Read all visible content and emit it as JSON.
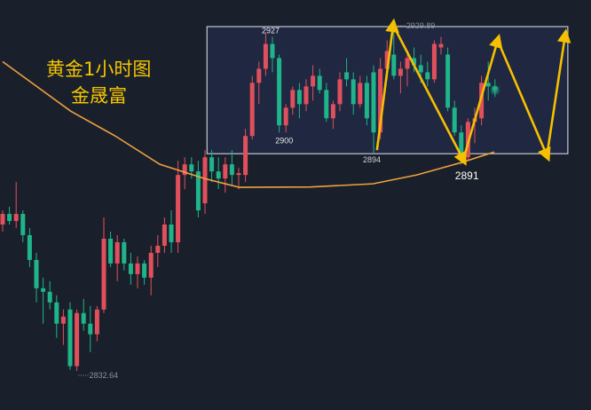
{
  "overlay_text": {
    "line1": "黄金1小时图",
    "line2": "金晟富"
  },
  "colors": {
    "background": "#1a202b",
    "up": "#e0505c",
    "down": "#1fb48a",
    "ma": "#f0a040",
    "arrows": "#f5c000",
    "range_box_fill": "#1f2741",
    "range_box_border": "#c4c8d0",
    "title": "#f5c400"
  },
  "chart_data": {
    "type": "candlestick",
    "title": "黄金1小时图",
    "up_color": "red",
    "down_color": "green",
    "ohlc": [
      [
        2874,
        2878,
        2872,
        2877
      ],
      [
        2877,
        2879,
        2874,
        2875
      ],
      [
        2875,
        2886,
        2873,
        2877
      ],
      [
        2877,
        2878,
        2869,
        2871
      ],
      [
        2871,
        2873,
        2862,
        2864
      ],
      [
        2864,
        2866,
        2852,
        2856
      ],
      [
        2856,
        2859,
        2846,
        2855
      ],
      [
        2855,
        2858,
        2850,
        2852
      ],
      [
        2852,
        2854,
        2842,
        2846
      ],
      [
        2846,
        2850,
        2840,
        2848
      ],
      [
        2850,
        2852,
        2833,
        2834
      ],
      [
        2834,
        2850,
        2832.64,
        2849
      ],
      [
        2849,
        2853,
        2844,
        2846
      ],
      [
        2846,
        2851,
        2838,
        2843
      ],
      [
        2843,
        2851,
        2841,
        2850
      ],
      [
        2850,
        2876,
        2849,
        2870
      ],
      [
        2870,
        2872,
        2862,
        2863
      ],
      [
        2863,
        2871,
        2858,
        2869
      ],
      [
        2869,
        2870,
        2861,
        2863
      ],
      [
        2863,
        2866,
        2857,
        2860
      ],
      [
        2860,
        2865,
        2856,
        2863
      ],
      [
        2863,
        2864,
        2857,
        2859
      ],
      [
        2859,
        2868,
        2854,
        2866
      ],
      [
        2866,
        2871,
        2862,
        2868
      ],
      [
        2868,
        2876,
        2866,
        2874
      ],
      [
        2874,
        2878,
        2866,
        2869
      ],
      [
        2869,
        2892,
        2866,
        2888
      ],
      [
        2888,
        2893,
        2884,
        2891
      ],
      [
        2891,
        2893,
        2887,
        2889
      ],
      [
        2889,
        2892,
        2876,
        2878
      ],
      [
        2880,
        2895,
        2877,
        2893
      ],
      [
        2893,
        2895,
        2886,
        2889
      ],
      [
        2889,
        2893,
        2884,
        2887
      ],
      [
        2887,
        2893,
        2883,
        2891
      ],
      [
        2891,
        2895,
        2885,
        2888
      ],
      [
        2888,
        2890,
        2884,
        2888.5
      ],
      [
        2888,
        2901,
        2886,
        2899
      ],
      [
        2899,
        2916,
        2898,
        2914
      ],
      [
        2914,
        2920,
        2908,
        2918
      ],
      [
        2918,
        2928,
        2916,
        2925
      ],
      [
        2925,
        2927,
        2917,
        2921
      ],
      [
        2921,
        2922,
        2900,
        2902
      ],
      [
        2902,
        2908,
        2900,
        2907
      ],
      [
        2907,
        2913,
        2905,
        2912
      ],
      [
        2912,
        2914,
        2904,
        2908
      ],
      [
        2908,
        2915,
        2906,
        2913
      ],
      [
        2913,
        2919,
        2909,
        2916
      ],
      [
        2916,
        2918,
        2911,
        2912
      ],
      [
        2912,
        2914,
        2903,
        2904
      ],
      [
        2904,
        2909,
        2901,
        2908
      ],
      [
        2908,
        2917,
        2906,
        2915
      ],
      [
        2917,
        2921,
        2913,
        2915
      ],
      [
        2915,
        2917,
        2905,
        2908
      ],
      [
        2908,
        2916,
        2907,
        2914
      ],
      [
        2914,
        2916,
        2902,
        2904
      ],
      [
        2917,
        2919,
        2894,
        2900
      ],
      [
        2900,
        2921,
        2898,
        2918
      ],
      [
        2918,
        2926,
        2915,
        2923
      ],
      [
        2922,
        2929.89,
        2915,
        2916
      ],
      [
        2916,
        2920,
        2911,
        2918
      ],
      [
        2918,
        2923,
        2913,
        2921
      ],
      [
        2921,
        2924,
        2917,
        2919
      ],
      [
        2919,
        2922,
        2914,
        2917
      ],
      [
        2917,
        2920,
        2913,
        2915
      ],
      [
        2915,
        2926,
        2914,
        2925
      ],
      [
        2924,
        2927,
        2922,
        2925
      ],
      [
        2922,
        2924,
        2906,
        2907
      ],
      [
        2907,
        2909,
        2899,
        2900
      ],
      [
        2900,
        2902,
        2891,
        2893
      ],
      [
        2893,
        2904,
        2892,
        2903
      ],
      [
        2903,
        2907,
        2897,
        2904
      ],
      [
        2904,
        2916,
        2902,
        2914
      ],
      [
        2914,
        2920,
        2909,
        2913
      ],
      [
        2913,
        2915,
        2910,
        2912
      ]
    ],
    "moving_average": [
      [
        0,
        2920
      ],
      [
        3.6,
        2915
      ],
      [
        10.1,
        2906
      ],
      [
        16.7,
        2899
      ],
      [
        23.3,
        2891
      ],
      [
        29.9,
        2887
      ],
      [
        35.1,
        2884.5
      ],
      [
        45.7,
        2884.6
      ],
      [
        54.9,
        2885.5
      ],
      [
        61.4,
        2888
      ],
      [
        68,
        2891.5
      ],
      [
        72.9,
        2894.5
      ]
    ],
    "range_box": {
      "start_index": 30.3,
      "end_index": 83.8,
      "top": 2929.89,
      "bottom": 2894
    },
    "projection_arrows": [
      [
        55.5,
        2895
      ],
      [
        57.9,
        2930.3
      ],
      [
        68.3,
        2892.3
      ],
      [
        73.4,
        2926
      ],
      [
        80.7,
        2893.5
      ],
      [
        83.4,
        2927.4
      ]
    ],
    "annotations": [
      {
        "text": "2927",
        "index": 40,
        "price": 2927
      },
      {
        "text": "2900",
        "index": 42,
        "price": 2900
      },
      {
        "text": "2894",
        "index": 55,
        "price": 2894
      },
      {
        "text": "2891",
        "index": 68,
        "price": 2891
      },
      {
        "text": "2929.89",
        "index": 58,
        "price": 2929.89
      },
      {
        "text": "2832.64",
        "index": 11,
        "price": 2832.64
      }
    ]
  }
}
